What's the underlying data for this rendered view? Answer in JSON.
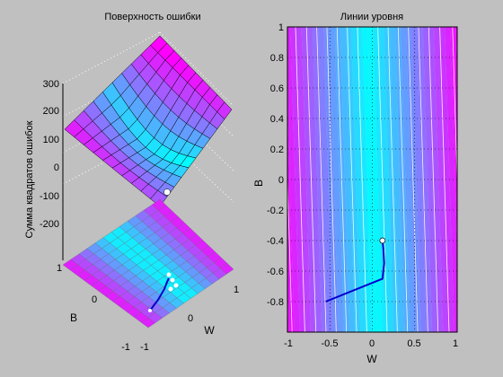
{
  "chart_data": [
    {
      "type": "surface3d",
      "title": "Поверхность ошибки",
      "zlabel": "Сумма квадратов ошибок",
      "xlabel": "W",
      "ylabel": "B",
      "xlim": [
        -1,
        1
      ],
      "ylim": [
        -1,
        1
      ],
      "zlim": [
        -250,
        300
      ],
      "z_ticks": [
        "300",
        "200",
        "100",
        "0",
        "-100",
        "-200"
      ],
      "x_ticks": [
        "-1",
        "0",
        "1"
      ],
      "y_ticks": [
        "-1",
        "0",
        "1"
      ],
      "grid": true,
      "colormap": [
        "#00ffff",
        "#ff00ff"
      ],
      "trajectory_start": [
        -0.55,
        -0.8
      ],
      "trajectory_end": [
        0.1,
        -0.4
      ],
      "minimum_marker": [
        0.1,
        -0.4
      ]
    },
    {
      "type": "contour",
      "title": "Линии уровня",
      "xlabel": "W",
      "ylabel": "B",
      "xlim": [
        -1,
        1
      ],
      "ylim": [
        -1,
        1
      ],
      "x_ticks": [
        "-1",
        "-0.5",
        "0",
        "0.5",
        "1"
      ],
      "y_ticks": [
        "1",
        "0.8",
        "0.6",
        "0.4",
        "0.2",
        "0",
        "-0.2",
        "-0.4",
        "-0.6",
        "-0.8"
      ],
      "grid": true,
      "colormap": [
        "#00ffff",
        "#ff00ff"
      ],
      "trajectory": [
        {
          "w": -0.55,
          "b": -0.8
        },
        {
          "w": 0.12,
          "b": -0.65
        },
        {
          "w": 0.14,
          "b": -0.55
        },
        {
          "w": 0.13,
          "b": -0.45
        },
        {
          "w": 0.12,
          "b": -0.4
        }
      ],
      "final_point": {
        "w": 0.12,
        "b": -0.4
      }
    }
  ]
}
